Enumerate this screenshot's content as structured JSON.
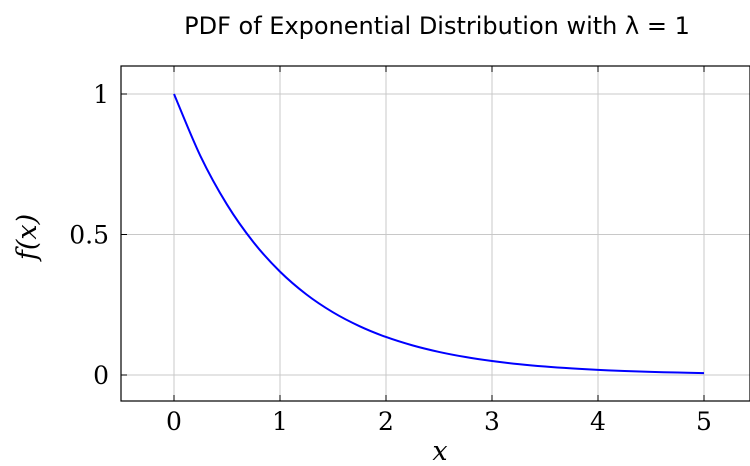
{
  "chart_data": {
    "type": "line",
    "title": "PDF of Exponential Distribution with λ = 1",
    "xlabel": "x",
    "ylabel": "f(x)",
    "xlim": [
      -0.5,
      5.2
    ],
    "ylim": [
      -0.09,
      1.1
    ],
    "xticks": [
      0,
      1,
      2,
      3,
      4,
      5
    ],
    "xtick_labels": [
      "0",
      "1",
      "2",
      "3",
      "4",
      "5"
    ],
    "yticks": [
      0,
      0.5,
      1
    ],
    "ytick_labels": [
      "0",
      "0.5",
      "1"
    ],
    "grid": true,
    "series": [
      {
        "color": "#0000ff",
        "x": [
          0,
          0.25,
          0.5,
          0.75,
          1,
          1.25,
          1.5,
          1.75,
          2,
          2.25,
          2.5,
          2.75,
          3,
          3.25,
          3.5,
          3.75,
          4,
          4.25,
          4.5,
          4.75,
          5
        ],
        "y": [
          1,
          0.7788,
          0.6065,
          0.4724,
          0.3679,
          0.2865,
          0.2231,
          0.1738,
          0.1353,
          0.1054,
          0.0821,
          0.0639,
          0.0498,
          0.0388,
          0.0302,
          0.0235,
          0.0183,
          0.0143,
          0.0111,
          0.0087,
          0.0067
        ]
      }
    ]
  }
}
